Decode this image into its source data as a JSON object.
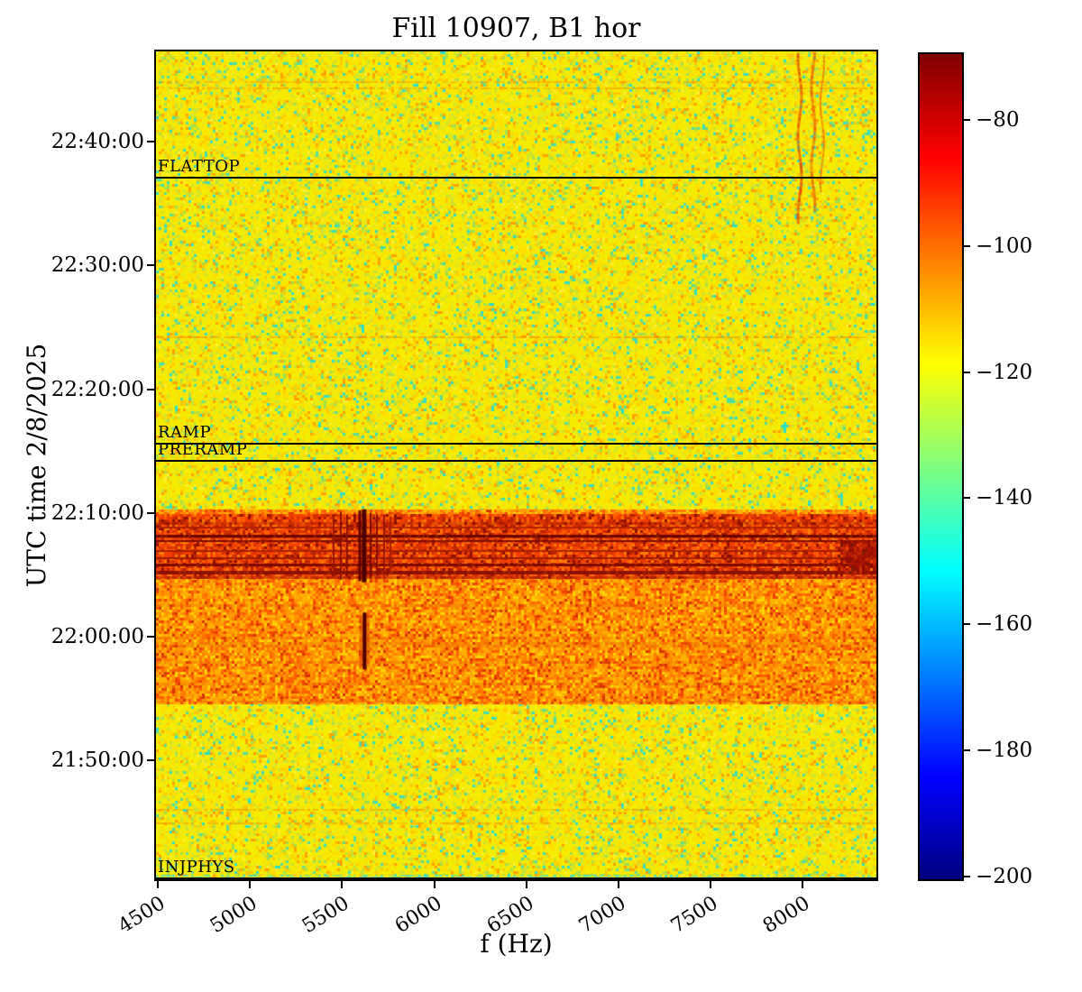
{
  "title": "Fill 10907, B1 hor",
  "chart_data": {
    "type": "heatmap",
    "subtype": "spectrogram",
    "title": "Fill 10907, B1 hor",
    "xlabel": "f (Hz)",
    "ylabel": "UTC time 2/8/2025",
    "grid": false,
    "x_range_hz": [
      4490,
      8400
    ],
    "x_ticks_hz": [
      4500,
      5000,
      5500,
      6000,
      6500,
      7000,
      7500,
      8000
    ],
    "time_axis": {
      "date": "2/8/2025",
      "top": "22:47:18",
      "bottom": "21:40:24",
      "top_min": 1367.3,
      "bottom_min": 1300.4,
      "ticks": [
        {
          "min": 1360,
          "label": "22:40:00"
        },
        {
          "min": 1350,
          "label": "22:30:00"
        },
        {
          "min": 1340,
          "label": "22:20:00"
        },
        {
          "min": 1330,
          "label": "22:10:00"
        },
        {
          "min": 1320,
          "label": "22:00:00"
        },
        {
          "min": 1310,
          "label": "21:50:00"
        }
      ]
    },
    "colorbar": {
      "colormap": "jet",
      "units": "dB",
      "vmax_db": -69.6,
      "vmin_db": -200.4,
      "ticks": [
        {
          "v": -80,
          "label": "−80"
        },
        {
          "v": -100,
          "label": "−100"
        },
        {
          "v": -120,
          "label": "−120"
        },
        {
          "v": -140,
          "label": "−140"
        },
        {
          "v": -160,
          "label": "−160"
        },
        {
          "v": -180,
          "label": "−180"
        },
        {
          "v": -200,
          "label": "−200"
        }
      ],
      "gradient_stops": [
        [
          "0%",
          "#00007f"
        ],
        [
          "12.5%",
          "#0000ff"
        ],
        [
          "37.5%",
          "#00ffff"
        ],
        [
          "62.5%",
          "#ffff00"
        ],
        [
          "87.5%",
          "#ff0000"
        ],
        [
          "100%",
          "#7f0000"
        ]
      ]
    },
    "beam_modes": [
      {
        "label": "FLATTOP",
        "min": 1357.2,
        "time": "22:37:12"
      },
      {
        "label": "RAMP",
        "min": 1335.7,
        "time": "22:15:42"
      },
      {
        "label": "PRERAMP",
        "min": 1334.3,
        "time": "22:14:18"
      },
      {
        "label": "INJPHYS",
        "min": 1300.4,
        "time": "21:40:24"
      }
    ],
    "background_level_db": -120,
    "palettes": {
      "base": [
        [
          "#f5ec00",
          0.4
        ],
        [
          "#ffdf00",
          0.18
        ],
        [
          "#e9ea15",
          0.12
        ],
        [
          "#ffc800",
          0.07
        ],
        [
          "#ffa200",
          0.045
        ],
        [
          "#cde32e",
          0.08
        ],
        [
          "#9fdf4e",
          0.035
        ],
        [
          "#54dd9c",
          0.025
        ],
        [
          "#2edfc6",
          0.025
        ],
        [
          "#ffee30",
          0.04
        ]
      ],
      "orange": [
        [
          "#ffb000",
          0.22
        ],
        [
          "#ff9800",
          0.26
        ],
        [
          "#ff7c00",
          0.18
        ],
        [
          "#ff6000",
          0.12
        ],
        [
          "#f04600",
          0.08
        ],
        [
          "#ffd000",
          0.1
        ],
        [
          "#d83400",
          0.04
        ]
      ],
      "red": [
        [
          "#ff5c00",
          0.22
        ],
        [
          "#f23e00",
          0.25
        ],
        [
          "#d93000",
          0.2
        ],
        [
          "#ff7c00",
          0.13
        ],
        [
          "#bb2200",
          0.12
        ],
        [
          "#911200",
          0.08
        ]
      ],
      "blob": [
        [
          "#a81400",
          0.4
        ],
        [
          "#8e0c00",
          0.25
        ],
        [
          "#c22800",
          0.25
        ],
        [
          "#741c00",
          0.1
        ]
      ],
      "cyan": [
        [
          "#52dfae",
          0.3
        ],
        [
          "#7fe076",
          0.25
        ],
        [
          "#b4e63e",
          0.25
        ],
        [
          "#ffe400",
          0.2
        ]
      ]
    },
    "features": {
      "zones": [
        {
          "name": "post-injection-orange-band",
          "t0": 1314.7,
          "t1": 1330.3,
          "palette": "orange",
          "rowStreakP": 0.12,
          "rowStreakC": "rgba(220,90,0,0.22)"
        },
        {
          "name": "strong-activity-red-band",
          "t0": 1324.8,
          "t1": 1329.9,
          "palette": "red",
          "rowStreakP": 0.2,
          "rowStreakC": "rgba(140,16,0,0.30)"
        }
      ],
      "dark_hlines": [
        {
          "t": 1328.9,
          "th": 2,
          "c": "#b02000"
        },
        {
          "t": 1328.25,
          "th": 3,
          "c": "#6b0500"
        },
        {
          "t": 1327.8,
          "th": 2,
          "c": "#7a0a00"
        },
        {
          "t": 1327.0,
          "th": 2,
          "c": "#a81c00"
        },
        {
          "t": 1326.4,
          "th": 2,
          "c": "#a01800"
        },
        {
          "t": 1325.9,
          "th": 3,
          "c": "#7a0a00"
        },
        {
          "t": 1325.35,
          "th": 4,
          "c": "#8a1000"
        }
      ],
      "faint_hlines": [
        {
          "t": 1364.9,
          "c": "#f5a300"
        },
        {
          "t": 1364.35,
          "c": "#f0a800"
        },
        {
          "t": 1344.3,
          "c": "#f29a00"
        },
        {
          "t": 1314.85,
          "c": "#e86a00"
        },
        {
          "t": 1306.1,
          "c": "#f0a000"
        },
        {
          "t": 1305.0,
          "c": "#eea600"
        }
      ],
      "vlines": [
        {
          "f": 5454,
          "w": 2,
          "c": "#9a1500",
          "t0": 1324.9,
          "t1": 1329.9
        },
        {
          "f": 5493,
          "w": 2,
          "c": "#8a0f00",
          "t0": 1324.6,
          "t1": 1330.1
        },
        {
          "f": 5527,
          "w": 2,
          "c": "#8a0f00",
          "t0": 1324.9,
          "t1": 1329.9
        },
        {
          "f": 5596,
          "w": 3,
          "c": "#600000",
          "t0": 1324.5,
          "t1": 1330.2
        },
        {
          "f": 5620,
          "w": 5,
          "c": "#4c0000",
          "t0": 1324.4,
          "t1": 1330.3
        },
        {
          "f": 5655,
          "w": 2,
          "c": "#7a0a00",
          "t0": 1324.7,
          "t1": 1330.0
        },
        {
          "f": 5689,
          "w": 2,
          "c": "#8a0f00",
          "t0": 1324.9,
          "t1": 1329.9
        },
        {
          "f": 5728,
          "w": 2,
          "c": "#9a1500",
          "t0": 1324.9,
          "t1": 1329.8
        },
        {
          "f": 5762,
          "w": 2,
          "c": "#a81c00",
          "t0": 1325.0,
          "t1": 1329.7
        }
      ],
      "iso_bar": {
        "f": 5622,
        "core_w": 4,
        "halo_w": 11,
        "core_c": "#500000",
        "halo_c": "#d84a00",
        "t0": 1317.35,
        "t1": 1321.95
      },
      "streaks": [
        {
          "f": 7984,
          "w": 3,
          "c": "#e04400",
          "t0": 1353.4,
          "t1": 1367.2
        },
        {
          "f": 8057,
          "w": 3,
          "c": "#e85a00",
          "t0": 1354.5,
          "t1": 1367.2
        },
        {
          "f": 8106,
          "w": 2,
          "c": "#ef7200",
          "t0": 1356.0,
          "t1": 1367.0
        }
      ],
      "blob": {
        "f0": 8190,
        "f1": 8400,
        "t0": 1325.1,
        "t1": 1327.7
      },
      "cyan_row": {
        "t0": 1300.4,
        "t1": 1300.8
      }
    }
  }
}
